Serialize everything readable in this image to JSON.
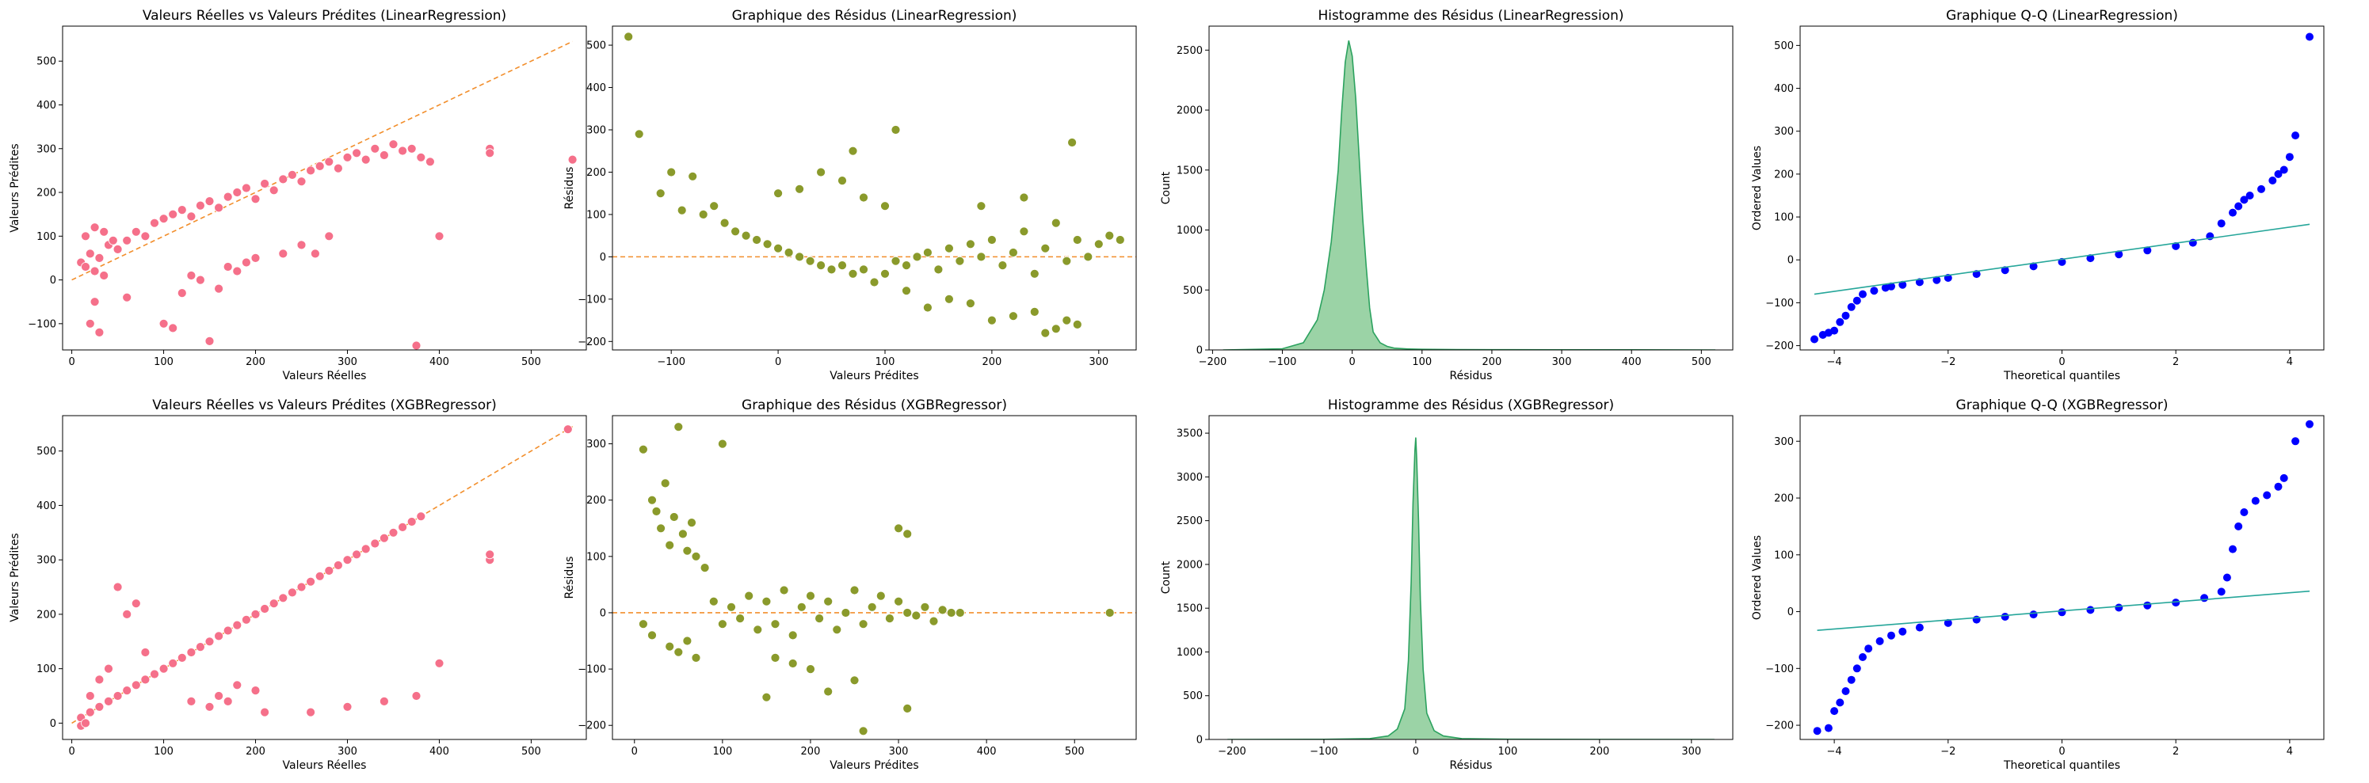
{
  "chart_data": [
    {
      "type": "scatter",
      "title": "Valeurs Réelles vs Valeurs Prédites (LinearRegression)",
      "xlabel": "Valeurs Réelles",
      "ylabel": "Valeurs Prédites",
      "xlim": [
        -10,
        560
      ],
      "ylim": [
        -160,
        580
      ],
      "xticks": [
        0,
        100,
        200,
        300,
        400,
        500
      ],
      "yticks": [
        -100,
        0,
        100,
        200,
        300,
        400,
        500
      ],
      "point_color": "#f5708a",
      "reference_line": {
        "x": [
          0,
          545
        ],
        "y": [
          0,
          545
        ],
        "color": "#f28e2b",
        "style": "dashed"
      },
      "points": {
        "x": [
          10,
          15,
          20,
          25,
          30,
          35,
          40,
          50,
          60,
          70,
          80,
          90,
          100,
          110,
          120,
          130,
          140,
          150,
          160,
          170,
          180,
          190,
          200,
          210,
          220,
          230,
          240,
          250,
          260,
          270,
          280,
          290,
          300,
          310,
          320,
          330,
          340,
          350,
          360,
          370,
          380,
          390,
          400,
          455,
          455,
          545,
          20,
          30,
          25,
          60,
          150,
          375,
          130,
          140,
          160,
          170,
          180,
          190,
          200,
          230,
          250,
          265,
          280,
          100,
          110,
          120,
          15,
          25,
          35,
          45
        ],
        "y": [
          40,
          30,
          60,
          20,
          50,
          10,
          80,
          70,
          90,
          110,
          100,
          130,
          140,
          150,
          160,
          145,
          170,
          180,
          165,
          190,
          200,
          210,
          185,
          220,
          205,
          230,
          240,
          225,
          250,
          260,
          270,
          255,
          280,
          290,
          275,
          300,
          285,
          310,
          295,
          300,
          280,
          270,
          100,
          300,
          290,
          275,
          -100,
          -120,
          -50,
          -40,
          -140,
          -150,
          10,
          0,
          -20,
          30,
          20,
          40,
          50,
          60,
          80,
          60,
          100,
          -100,
          -110,
          -30,
          100,
          120,
          110,
          90
        ]
      }
    },
    {
      "type": "scatter",
      "title": "Graphique des Résidus (LinearRegression)",
      "xlabel": "Valeurs Prédites",
      "ylabel": "Résidus",
      "xlim": [
        -155,
        335
      ],
      "ylim": [
        -220,
        545
      ],
      "xticks": [
        -100,
        0,
        100,
        200,
        300
      ],
      "yticks": [
        -200,
        -100,
        0,
        100,
        200,
        300,
        400,
        500
      ],
      "point_color": "#8a9a2b",
      "reference_line": {
        "y": 0,
        "color": "#f28e2b",
        "style": "dashed"
      },
      "points": {
        "x": [
          -140,
          -130,
          -110,
          -100,
          -90,
          -80,
          -70,
          -60,
          -50,
          -40,
          -30,
          -20,
          -10,
          0,
          10,
          20,
          30,
          40,
          50,
          60,
          70,
          80,
          90,
          100,
          110,
          120,
          130,
          140,
          150,
          160,
          170,
          180,
          190,
          200,
          210,
          220,
          230,
          240,
          250,
          260,
          270,
          280,
          290,
          300,
          310,
          320,
          0,
          20,
          40,
          60,
          80,
          100,
          120,
          140,
          160,
          180,
          200,
          220,
          240,
          260,
          280,
          190,
          230,
          250,
          270,
          275,
          110,
          70
        ],
        "y": [
          520,
          290,
          150,
          200,
          110,
          190,
          100,
          120,
          80,
          60,
          50,
          40,
          30,
          20,
          10,
          0,
          -10,
          -20,
          -30,
          -20,
          -40,
          -30,
          -60,
          -40,
          -10,
          -20,
          0,
          10,
          -30,
          20,
          -10,
          30,
          0,
          40,
          -20,
          10,
          60,
          -40,
          20,
          80,
          -10,
          40,
          0,
          30,
          50,
          40,
          150,
          160,
          200,
          180,
          140,
          120,
          -80,
          -120,
          -100,
          -110,
          -150,
          -140,
          -130,
          -170,
          -160,
          120,
          140,
          -180,
          -150,
          270,
          300,
          250
        ]
      }
    },
    {
      "type": "area",
      "title": "Histogramme des Résidus (LinearRegression)",
      "xlabel": "Résidus",
      "ylabel": "Count",
      "xlim": [
        -205,
        545
      ],
      "ylim": [
        0,
        2700
      ],
      "xticks": [
        -200,
        -100,
        0,
        100,
        200,
        300,
        400,
        500
      ],
      "yticks": [
        0,
        500,
        1000,
        1500,
        2000,
        2500
      ],
      "fill_color": "#9bd3a6",
      "line_color": "#2ca25f",
      "x": [
        -185,
        -100,
        -70,
        -50,
        -40,
        -30,
        -20,
        -15,
        -10,
        -5,
        0,
        5,
        10,
        15,
        20,
        25,
        30,
        40,
        50,
        60,
        80,
        100,
        150,
        200,
        300,
        400,
        520
      ],
      "y": [
        0,
        10,
        60,
        250,
        500,
        900,
        1500,
        2000,
        2400,
        2580,
        2450,
        2100,
        1600,
        1100,
        700,
        350,
        150,
        60,
        30,
        15,
        8,
        5,
        3,
        2,
        1,
        1,
        0
      ]
    },
    {
      "type": "scatter",
      "title": "Graphique Q-Q (LinearRegression)",
      "xlabel": "Theoretical quantiles",
      "ylabel": "Ordered Values",
      "xlim": [
        -4.6,
        4.6
      ],
      "ylim": [
        -210,
        545
      ],
      "xticks": [
        -4,
        -2,
        0,
        2,
        4
      ],
      "yticks": [
        -200,
        -100,
        0,
        100,
        200,
        300,
        400,
        500
      ],
      "point_color": "#0000ff",
      "line_color": "#26a69a",
      "fit_line": {
        "x": [
          -4.35,
          4.35
        ],
        "y": [
          -80,
          83
        ]
      },
      "points": {
        "x": [
          -4.35,
          -4.2,
          -4.1,
          -4.0,
          -3.9,
          -3.8,
          -3.7,
          -3.6,
          -3.5,
          -3.3,
          -3.1,
          -3.0,
          -2.8,
          -2.5,
          -2.2,
          -2.0,
          -1.5,
          -1.0,
          -0.5,
          0,
          0.5,
          1.0,
          1.5,
          2.0,
          2.3,
          2.6,
          2.8,
          3.0,
          3.1,
          3.2,
          3.3,
          3.5,
          3.7,
          3.8,
          3.9,
          4.0,
          4.1,
          4.35
        ],
        "y": [
          -185,
          -175,
          -170,
          -165,
          -145,
          -130,
          -110,
          -95,
          -80,
          -72,
          -65,
          -62,
          -58,
          -52,
          -47,
          -42,
          -33,
          -24,
          -15,
          -5,
          4,
          13,
          22,
          32,
          40,
          55,
          85,
          110,
          125,
          140,
          150,
          165,
          185,
          200,
          210,
          240,
          290,
          520
        ]
      }
    },
    {
      "type": "scatter",
      "title": "Valeurs Réelles vs Valeurs Prédites (XGBRegressor)",
      "xlabel": "Valeurs Réelles",
      "ylabel": "Valeurs Prédites",
      "xlim": [
        -10,
        560
      ],
      "ylim": [
        -30,
        565
      ],
      "xticks": [
        0,
        100,
        200,
        300,
        400,
        500
      ],
      "yticks": [
        0,
        100,
        200,
        300,
        400,
        500
      ],
      "point_color": "#f5708a",
      "reference_line": {
        "x": [
          0,
          545
        ],
        "y": [
          0,
          545
        ],
        "color": "#f28e2b",
        "style": "dashed"
      },
      "points": {
        "x": [
          10,
          20,
          30,
          40,
          50,
          60,
          70,
          80,
          90,
          100,
          110,
          120,
          130,
          140,
          150,
          160,
          170,
          180,
          190,
          200,
          210,
          220,
          230,
          240,
          250,
          260,
          270,
          280,
          290,
          300,
          310,
          320,
          330,
          340,
          350,
          360,
          370,
          380,
          400,
          455,
          455,
          540,
          50,
          60,
          70,
          80,
          130,
          150,
          160,
          170,
          180,
          200,
          210,
          260,
          300,
          340,
          375,
          20,
          30,
          40,
          10,
          15
        ],
        "y": [
          10,
          20,
          30,
          40,
          50,
          60,
          70,
          80,
          90,
          100,
          110,
          120,
          130,
          140,
          150,
          160,
          170,
          180,
          190,
          200,
          210,
          220,
          230,
          240,
          250,
          260,
          270,
          280,
          290,
          300,
          310,
          320,
          330,
          340,
          350,
          360,
          370,
          380,
          110,
          300,
          310,
          540,
          250,
          200,
          220,
          130,
          40,
          30,
          50,
          40,
          70,
          60,
          20,
          20,
          30,
          40,
          50,
          50,
          80,
          100,
          -5,
          0
        ]
      }
    },
    {
      "type": "scatter",
      "title": "Graphique des Résidus (XGBRegressor)",
      "xlabel": "Valeurs Prédites",
      "ylabel": "Résidus",
      "xlim": [
        -25,
        570
      ],
      "ylim": [
        -225,
        350
      ],
      "xticks": [
        0,
        100,
        200,
        300,
        400,
        500
      ],
      "yticks": [
        -200,
        -100,
        0,
        100,
        200,
        300
      ],
      "point_color": "#8a9a2b",
      "reference_line": {
        "y": 0,
        "color": "#f28e2b",
        "style": "dashed"
      },
      "points": {
        "x": [
          10,
          20,
          25,
          30,
          35,
          40,
          45,
          50,
          55,
          60,
          65,
          70,
          80,
          90,
          100,
          110,
          120,
          130,
          140,
          150,
          160,
          170,
          180,
          190,
          200,
          210,
          220,
          230,
          240,
          250,
          260,
          270,
          280,
          290,
          300,
          310,
          320,
          330,
          340,
          350,
          360,
          370,
          540,
          10,
          20,
          40,
          50,
          60,
          70,
          100,
          150,
          200,
          220,
          250,
          260,
          300,
          310,
          310,
          160,
          180
        ],
        "y": [
          290,
          200,
          180,
          150,
          230,
          120,
          170,
          330,
          140,
          110,
          160,
          100,
          80,
          20,
          -20,
          10,
          -10,
          30,
          -30,
          20,
          -20,
          40,
          -40,
          10,
          30,
          -10,
          20,
          -30,
          0,
          40,
          -20,
          10,
          30,
          -10,
          20,
          0,
          -5,
          10,
          -15,
          5,
          0,
          0,
          0,
          -20,
          -40,
          -60,
          -70,
          -50,
          -80,
          300,
          -150,
          -100,
          -140,
          -120,
          -210,
          150,
          140,
          -170,
          -80,
          -90
        ]
      }
    },
    {
      "type": "area",
      "title": "Histogramme des Résidus (XGBRegressor)",
      "xlabel": "Résidus",
      "ylabel": "Count",
      "xlim": [
        -225,
        345
      ],
      "ylim": [
        0,
        3700
      ],
      "xticks": [
        -200,
        -100,
        0,
        100,
        200,
        300
      ],
      "yticks": [
        0,
        500,
        1000,
        1500,
        2000,
        2500,
        3000,
        3500
      ],
      "fill_color": "#9bd3a6",
      "line_color": "#2ca25f",
      "x": [
        -205,
        -100,
        -50,
        -30,
        -20,
        -12,
        -8,
        -5,
        -3,
        -1,
        0,
        1,
        3,
        5,
        8,
        12,
        20,
        30,
        50,
        100,
        200,
        325
      ],
      "y": [
        0,
        2,
        10,
        40,
        120,
        350,
        900,
        1800,
        2700,
        3300,
        3450,
        3200,
        2500,
        1600,
        800,
        300,
        100,
        40,
        10,
        3,
        1,
        0
      ]
    },
    {
      "type": "scatter",
      "title": "Graphique Q-Q (XGBRegressor)",
      "xlabel": "Theoretical quantiles",
      "ylabel": "Ordered Values",
      "xlim": [
        -4.6,
        4.6
      ],
      "ylim": [
        -225,
        345
      ],
      "xticks": [
        -4,
        -2,
        0,
        2,
        4
      ],
      "yticks": [
        -200,
        -100,
        0,
        100,
        200,
        300
      ],
      "point_color": "#0000ff",
      "line_color": "#26a69a",
      "fit_line": {
        "x": [
          -4.3,
          4.35
        ],
        "y": [
          -33,
          36
        ]
      },
      "points": {
        "x": [
          -4.3,
          -4.1,
          -4.0,
          -3.9,
          -3.8,
          -3.7,
          -3.6,
          -3.5,
          -3.4,
          -3.2,
          -3.0,
          -2.8,
          -2.5,
          -2.0,
          -1.5,
          -1.0,
          -0.5,
          0,
          0.5,
          1.0,
          1.5,
          2.0,
          2.5,
          2.8,
          2.9,
          3.0,
          3.1,
          3.2,
          3.4,
          3.6,
          3.8,
          3.9,
          4.1,
          4.35
        ],
        "y": [
          -210,
          -205,
          -175,
          -160,
          -140,
          -120,
          -100,
          -80,
          -65,
          -52,
          -42,
          -35,
          -28,
          -20,
          -14,
          -9,
          -5,
          -1,
          3,
          7,
          11,
          16,
          24,
          35,
          60,
          110,
          150,
          175,
          195,
          205,
          220,
          235,
          300,
          330
        ]
      }
    }
  ]
}
